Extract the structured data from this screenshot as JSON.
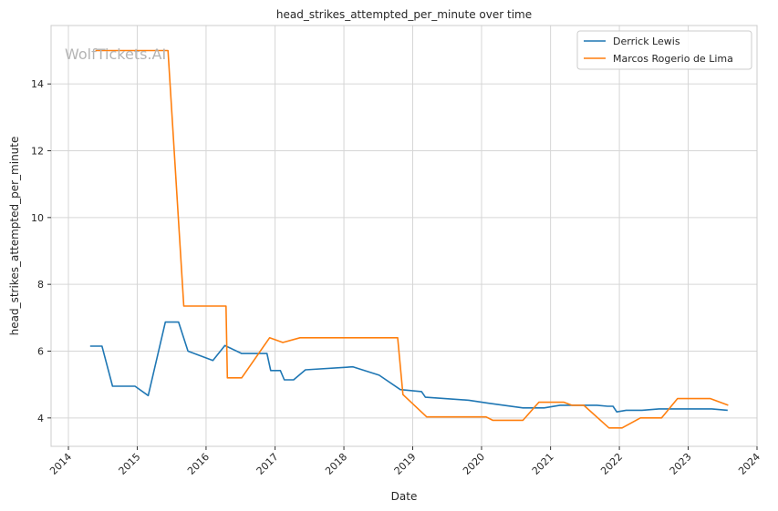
{
  "chart_data": {
    "type": "line",
    "title": "head_strikes_attempted_per_minute over time",
    "xlabel": "Date",
    "ylabel": "head_strikes_attempted_per_minute",
    "watermark": "WolfTickets.AI",
    "xlim": [
      "2013-10-01",
      "2024-01-01"
    ],
    "ylim": [
      3.15,
      15.75
    ],
    "x_ticks": [
      "2014",
      "2015",
      "2016",
      "2017",
      "2018",
      "2019",
      "2020",
      "2021",
      "2022",
      "2023",
      "2024"
    ],
    "y_ticks": [
      4,
      6,
      8,
      10,
      12,
      14
    ],
    "grid": true,
    "legend": "top-right",
    "series": [
      {
        "name": "Derrick Lewis",
        "color": "#1f77b4",
        "points": [
          [
            "2014-04-26",
            6.15
          ],
          [
            "2014-06-28",
            6.15
          ],
          [
            "2014-08-23",
            4.95
          ],
          [
            "2014-12-20",
            4.95
          ],
          [
            "2015-02-28",
            4.67
          ],
          [
            "2015-05-30",
            6.87
          ],
          [
            "2015-08-08",
            6.87
          ],
          [
            "2015-09-27",
            6.0
          ],
          [
            "2016-02-06",
            5.72
          ],
          [
            "2016-04-10",
            6.17
          ],
          [
            "2016-07-08",
            5.93
          ],
          [
            "2016-11-19",
            5.93
          ],
          [
            "2016-12-09",
            5.42
          ],
          [
            "2017-01-29",
            5.42
          ],
          [
            "2017-02-19",
            5.14
          ],
          [
            "2017-04-09",
            5.14
          ],
          [
            "2017-06-11",
            5.44
          ],
          [
            "2018-02-18",
            5.53
          ],
          [
            "2018-07-07",
            5.28
          ],
          [
            "2018-10-27",
            4.85
          ],
          [
            "2019-02-17",
            4.79
          ],
          [
            "2019-03-09",
            4.62
          ],
          [
            "2019-10-26",
            4.53
          ],
          [
            "2020-02-08",
            4.44
          ],
          [
            "2020-08-08",
            4.3
          ],
          [
            "2020-11-28",
            4.3
          ],
          [
            "2021-02-20",
            4.38
          ],
          [
            "2021-09-04",
            4.38
          ],
          [
            "2021-10-30",
            4.35
          ],
          [
            "2021-11-28",
            4.35
          ],
          [
            "2021-12-18",
            4.18
          ],
          [
            "2022-02-06",
            4.23
          ],
          [
            "2022-05-01",
            4.23
          ],
          [
            "2022-07-30",
            4.27
          ],
          [
            "2023-05-06",
            4.27
          ],
          [
            "2023-07-29",
            4.23
          ]
        ]
      },
      {
        "name": "Marcos Rogerio de Lima",
        "color": "#ff7f0e",
        "points": [
          [
            "2014-05-24",
            15.0
          ],
          [
            "2015-06-13",
            15.0
          ],
          [
            "2015-09-05",
            7.35
          ],
          [
            "2016-04-16",
            7.35
          ],
          [
            "2016-04-23",
            5.2
          ],
          [
            "2016-07-08",
            5.2
          ],
          [
            "2016-12-03",
            6.4
          ],
          [
            "2017-02-11",
            6.26
          ],
          [
            "2017-05-13",
            6.4
          ],
          [
            "2018-10-13",
            6.4
          ],
          [
            "2018-11-10",
            4.7
          ],
          [
            "2019-03-16",
            4.03
          ],
          [
            "2020-01-25",
            4.03
          ],
          [
            "2020-02-29",
            3.93
          ],
          [
            "2020-08-08",
            3.93
          ],
          [
            "2020-10-31",
            4.47
          ],
          [
            "2021-03-13",
            4.47
          ],
          [
            "2021-04-24",
            4.38
          ],
          [
            "2021-06-26",
            4.38
          ],
          [
            "2021-11-07",
            3.7
          ],
          [
            "2022-01-15",
            3.7
          ],
          [
            "2022-04-23",
            4.0
          ],
          [
            "2022-08-13",
            4.0
          ],
          [
            "2022-11-05",
            4.58
          ],
          [
            "2023-04-29",
            4.58
          ],
          [
            "2023-08-01",
            4.38
          ]
        ]
      }
    ]
  }
}
